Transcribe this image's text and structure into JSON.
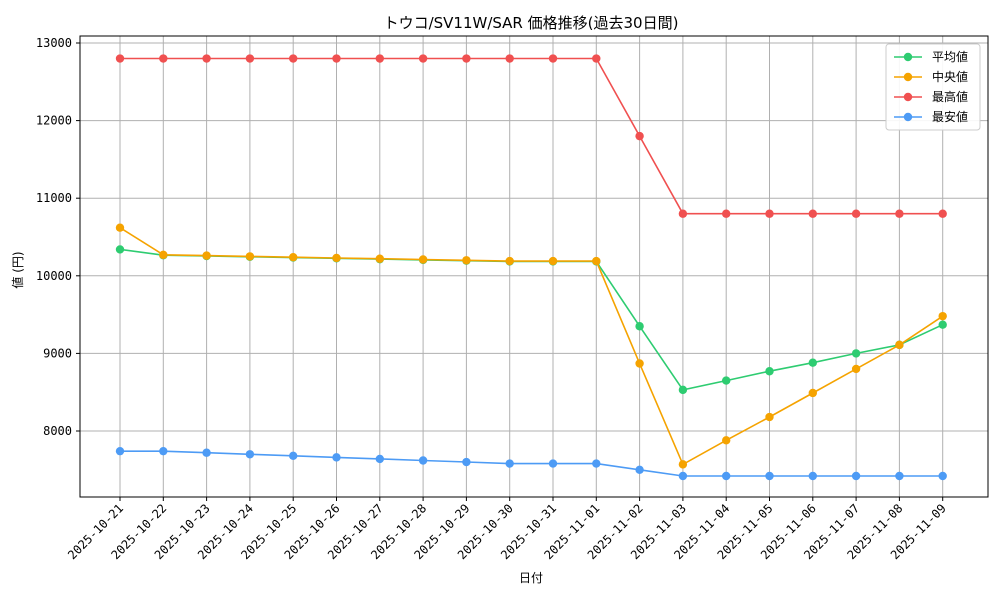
{
  "chart_data": {
    "type": "line",
    "title": "トウコ/SV11W/SAR 価格推移(過去30日間)",
    "xlabel": "日付",
    "ylabel": "値 (円)",
    "ylim": [
      7150,
      13000
    ],
    "yticks": [
      8000,
      9000,
      10000,
      11000,
      12000,
      13000
    ],
    "grid": true,
    "legend_position": "top-right",
    "categories": [
      "2025-10-21",
      "2025-10-22",
      "2025-10-23",
      "2025-10-24",
      "2025-10-25",
      "2025-10-26",
      "2025-10-27",
      "2025-10-28",
      "2025-10-29",
      "2025-10-30",
      "2025-10-31",
      "2025-11-01",
      "2025-11-02",
      "2025-11-03",
      "2025-11-04",
      "2025-11-05",
      "2025-11-06",
      "2025-11-07",
      "2025-11-08",
      "2025-11-09"
    ],
    "series": [
      {
        "name": "平均値",
        "color": "#2ecc71",
        "values": [
          10340,
          10265,
          10255,
          10245,
          10235,
          10225,
          10215,
          10205,
          10195,
          10185,
          10185,
          10185,
          9350,
          8530,
          8650,
          8770,
          8880,
          9000,
          9110,
          9370
        ]
      },
      {
        "name": "中央値",
        "color": "#f5a300",
        "values": [
          10620,
          10270,
          10260,
          10250,
          10240,
          10230,
          10220,
          10210,
          10200,
          10190,
          10190,
          10190,
          8870,
          7570,
          7880,
          8180,
          8490,
          8800,
          9110,
          9480
        ]
      },
      {
        "name": "最高値",
        "color": "#f05050",
        "values": [
          12800,
          12800,
          12800,
          12800,
          12800,
          12800,
          12800,
          12800,
          12800,
          12800,
          12800,
          12800,
          11800,
          10800,
          10800,
          10800,
          10800,
          10800,
          10800,
          10800
        ]
      },
      {
        "name": "最安値",
        "color": "#4d9bf5",
        "values": [
          7740,
          7740,
          7720,
          7700,
          7680,
          7660,
          7640,
          7620,
          7600,
          7580,
          7580,
          7580,
          7500,
          7420,
          7420,
          7420,
          7420,
          7420,
          7420,
          7420
        ]
      }
    ]
  }
}
